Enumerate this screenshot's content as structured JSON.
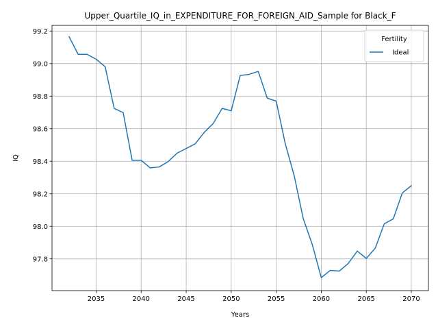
{
  "chart_data": {
    "type": "line",
    "title": "Upper_Quartile_IQ_in_EXPENDITURE_FOR_FOREIGN_AID_Sample for Black_F",
    "xlabel": "Years",
    "ylabel": "IQ",
    "xlim": [
      2030.1,
      2071.9
    ],
    "ylim": [
      97.605,
      99.235
    ],
    "xticks": [
      2035,
      2040,
      2045,
      2050,
      2055,
      2060,
      2065,
      2070
    ],
    "yticks": [
      97.8,
      98.0,
      98.2,
      98.4,
      98.6,
      98.8,
      99.0,
      99.2
    ],
    "grid": true,
    "legend": {
      "title": "Fertility",
      "placement": "upper right"
    },
    "series": [
      {
        "name": "Ideal",
        "color": "#1f77b4",
        "x": [
          2032,
          2033,
          2034,
          2035,
          2036,
          2037,
          2038,
          2039,
          2040,
          2041,
          2042,
          2043,
          2044,
          2045,
          2046,
          2047,
          2048,
          2049,
          2050,
          2051,
          2052,
          2053,
          2054,
          2055,
          2056,
          2057,
          2058,
          2059,
          2060,
          2061,
          2062,
          2063,
          2064,
          2065,
          2066,
          2067,
          2068,
          2069,
          2070
        ],
        "y": [
          99.165,
          99.057,
          99.057,
          99.027,
          98.981,
          98.725,
          98.699,
          98.406,
          98.406,
          98.359,
          98.365,
          98.398,
          98.45,
          98.478,
          98.507,
          98.577,
          98.632,
          98.725,
          98.71,
          98.927,
          98.934,
          98.952,
          98.788,
          98.769,
          98.508,
          98.31,
          98.047,
          97.889,
          97.685,
          97.729,
          97.725,
          97.772,
          97.848,
          97.803,
          97.866,
          98.016,
          98.046,
          98.205,
          98.25
        ]
      }
    ]
  }
}
